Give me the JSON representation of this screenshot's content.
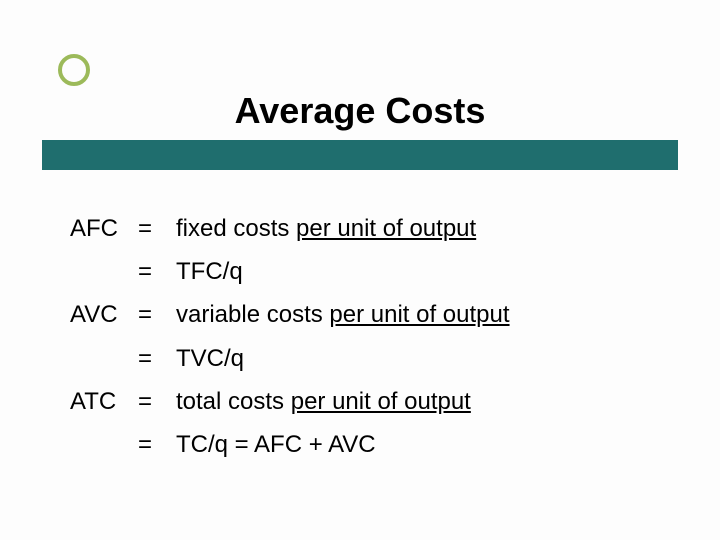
{
  "title": "Average Costs",
  "colors": {
    "bullet_ring": "#9cba5a",
    "bar": "#1f6e6e",
    "background": "#fdfdfd",
    "text": "#000000"
  },
  "rows": [
    {
      "term": "AFC",
      "eq": "=",
      "desc_plain": "fixed costs ",
      "desc_ul": "per unit of output"
    },
    {
      "term": "",
      "eq": "=",
      "desc_plain": "TFC/q",
      "desc_ul": ""
    },
    {
      "term": "AVC",
      "eq": "=",
      "desc_plain": "variable costs ",
      "desc_ul": "per unit of output"
    },
    {
      "term": "",
      "eq": "=",
      "desc_plain": "TVC/q",
      "desc_ul": ""
    },
    {
      "term": "ATC",
      "eq": "=",
      "desc_plain": "total costs ",
      "desc_ul": "per unit of output"
    },
    {
      "term": "",
      "eq": "=",
      "desc_plain": "TC/q = AFC + AVC",
      "desc_ul": ""
    }
  ],
  "font": {
    "size_title": 36,
    "size_body": 24,
    "family": "Arial"
  }
}
